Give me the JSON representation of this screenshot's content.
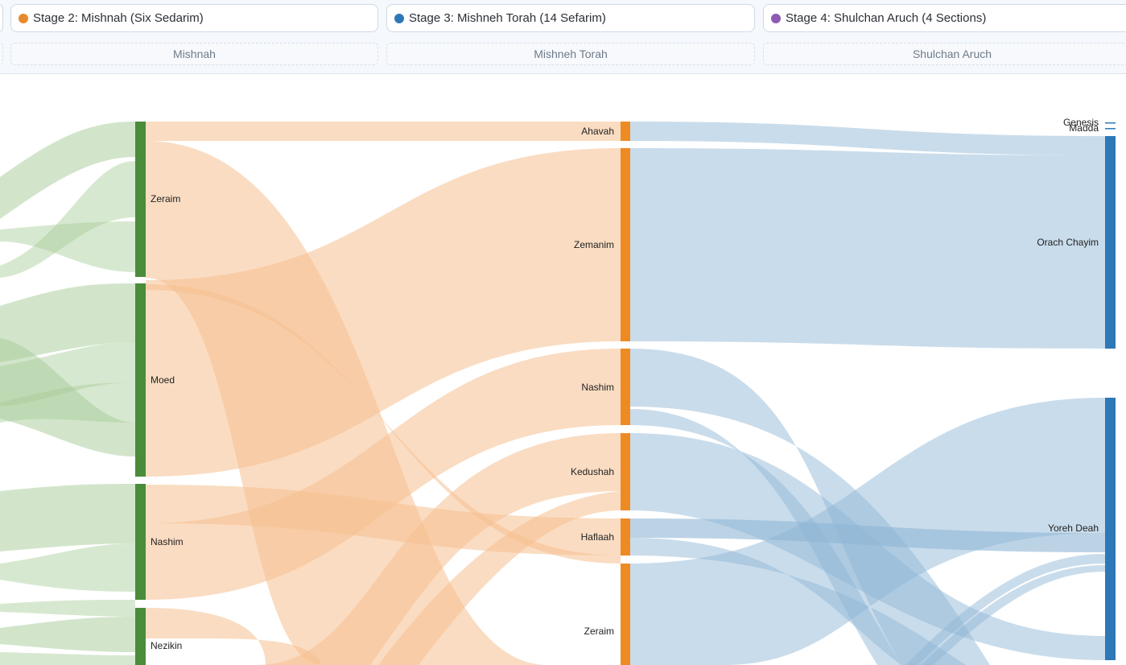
{
  "header": {
    "stages": [
      {
        "label": "Stage 2: Mishnah (Six Sedarim)",
        "color": "#e9892a"
      },
      {
        "label": "Stage 3: Mishneh Torah (14 Sefarim)",
        "color": "#2e78b7"
      },
      {
        "label": "Stage 4: Shulchan Aruch (4 Sections)",
        "color": "#8e5ab5"
      }
    ],
    "columns": [
      "Mishnah",
      "Mishneh Torah",
      "Shulchan Aruch"
    ]
  },
  "sankey": {
    "colors": {
      "mishnah_node": "#4a8c3a",
      "mishnah_flow": "#a6cc97",
      "mishneh_node": "#ee8a22",
      "mishneh_flow": "#f5c08f",
      "shulchan_node": "#2e78b7",
      "shulchan_flow": "#8fb5d6"
    },
    "mishnah_nodes": [
      "Zeraim",
      "Moed",
      "Nashim",
      "Nezikin"
    ],
    "mishneh_nodes": [
      "Ahavah",
      "Zemanim",
      "Nashim",
      "Kedushah",
      "Haflaah",
      "Zeraim"
    ],
    "shulchan_nodes": [
      "Genesis",
      "Madda",
      "Orach Chayim",
      "Yoreh Deah"
    ]
  }
}
